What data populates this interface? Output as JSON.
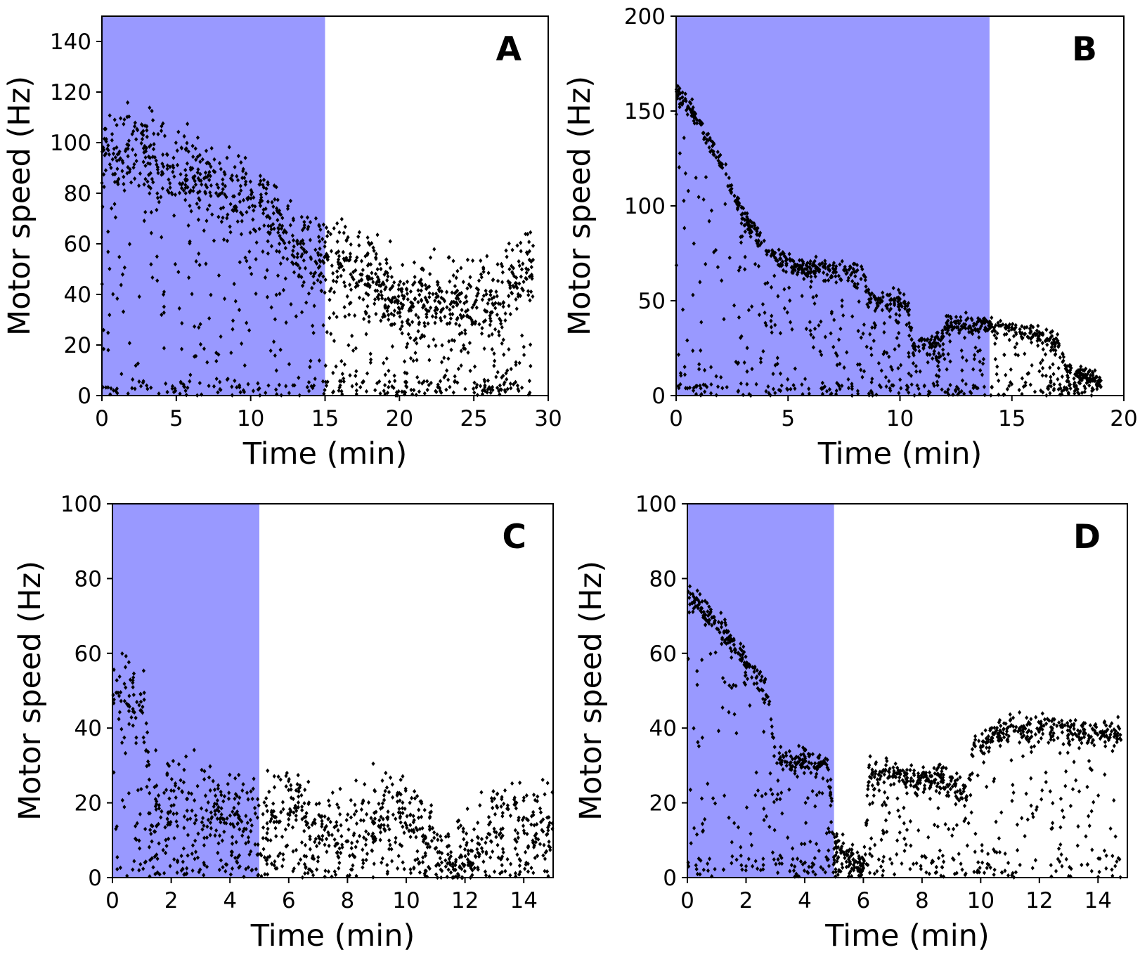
{
  "colors": {
    "shading": "#9999ff",
    "points": "#000000"
  },
  "chart_data": [
    {
      "type": "scatter",
      "panel": "A",
      "xlabel": "Time (min)",
      "ylabel": "Motor speed (Hz)",
      "xlim": [
        0,
        30
      ],
      "ylim": [
        0,
        150
      ],
      "xticks": [
        0,
        5,
        10,
        15,
        20,
        25,
        30
      ],
      "xtick_labels": [
        "0",
        "5",
        "10",
        "15",
        "20",
        "25",
        "30"
      ],
      "yticks": [
        0,
        20,
        40,
        60,
        80,
        100,
        120,
        140
      ],
      "ytick_labels": [
        "0",
        "20",
        "40",
        "60",
        "80",
        "100",
        "120",
        "140"
      ],
      "shaded_x": [
        0,
        15
      ],
      "x_end": 29,
      "seed": 11,
      "density": 1500,
      "scatter": 17,
      "trend": [
        [
          0,
          95
        ],
        [
          3,
          97
        ],
        [
          6,
          88
        ],
        [
          9,
          80
        ],
        [
          11,
          74
        ],
        [
          13,
          60
        ],
        [
          15,
          55
        ],
        [
          16,
          55
        ],
        [
          18,
          48
        ],
        [
          20,
          38
        ],
        [
          24,
          38
        ],
        [
          27,
          40
        ],
        [
          28.5,
          52
        ],
        [
          29,
          52
        ]
      ]
    },
    {
      "type": "scatter",
      "panel": "B",
      "xlabel": "Time (min)",
      "ylabel": "Motor speed (Hz)",
      "xlim": [
        0,
        20
      ],
      "ylim": [
        0,
        200
      ],
      "xticks": [
        0,
        5,
        10,
        15,
        20
      ],
      "xtick_labels": [
        "0",
        "5",
        "10",
        "15",
        "20"
      ],
      "yticks": [
        0,
        50,
        100,
        150,
        200
      ],
      "ytick_labels": [
        "0",
        "50",
        "100",
        "150",
        "200"
      ],
      "shaded_x": [
        0,
        14
      ],
      "x_end": 19,
      "seed": 23,
      "density": 1300,
      "scatter": 6,
      "trend": [
        [
          0,
          160
        ],
        [
          1,
          145
        ],
        [
          2,
          122
        ],
        [
          3,
          95
        ],
        [
          4,
          78
        ],
        [
          5,
          70
        ],
        [
          6,
          67
        ],
        [
          8.3,
          64
        ],
        [
          8.6,
          52
        ],
        [
          10.3,
          50
        ],
        [
          10.6,
          28
        ],
        [
          11.8,
          28
        ],
        [
          12.1,
          38
        ],
        [
          14,
          37
        ],
        [
          16,
          33
        ],
        [
          17,
          28
        ],
        [
          17.5,
          14
        ],
        [
          19,
          8
        ]
      ]
    },
    {
      "type": "scatter",
      "panel": "C",
      "xlabel": "Time (min)",
      "ylabel": "Motor speed (Hz)",
      "xlim": [
        0,
        15
      ],
      "ylim": [
        0,
        100
      ],
      "xticks": [
        0,
        2,
        4,
        6,
        8,
        10,
        12,
        14
      ],
      "xtick_labels": [
        "0",
        "2",
        "4",
        "6",
        "8",
        "10",
        "12",
        "14"
      ],
      "yticks": [
        0,
        20,
        40,
        60,
        80,
        100
      ],
      "ytick_labels": [
        "0",
        "20",
        "40",
        "60",
        "80",
        "100"
      ],
      "shaded_x": [
        0,
        5
      ],
      "x_end": 15,
      "seed": 37,
      "density": 1100,
      "scatter": 12,
      "trend": [
        [
          0,
          55
        ],
        [
          0.3,
          50
        ],
        [
          1.1,
          46
        ],
        [
          1.3,
          20
        ],
        [
          3,
          20
        ],
        [
          5,
          15
        ],
        [
          6,
          22
        ],
        [
          7,
          14
        ],
        [
          8,
          12
        ],
        [
          9,
          16
        ],
        [
          10,
          18
        ],
        [
          11,
          10
        ],
        [
          11.7,
          2
        ],
        [
          12,
          8
        ],
        [
          13,
          15
        ],
        [
          15,
          15
        ]
      ]
    },
    {
      "type": "scatter",
      "panel": "D",
      "xlabel": "Time (min)",
      "ylabel": "Motor speed (Hz)",
      "xlim": [
        0,
        15
      ],
      "ylim": [
        0,
        100
      ],
      "xticks": [
        0,
        2,
        4,
        6,
        8,
        10,
        12,
        14
      ],
      "xtick_labels": [
        "0",
        "2",
        "4",
        "6",
        "8",
        "10",
        "12",
        "14"
      ],
      "yticks": [
        0,
        20,
        40,
        60,
        80,
        100
      ],
      "ytick_labels": [
        "0",
        "20",
        "40",
        "60",
        "80",
        "100"
      ],
      "shaded_x": [
        0,
        5
      ],
      "x_end": 14.8,
      "seed": 53,
      "density": 1300,
      "scatter": 4,
      "trend": [
        [
          0,
          75
        ],
        [
          1,
          68
        ],
        [
          2,
          58
        ],
        [
          2.8,
          48
        ],
        [
          3,
          32
        ],
        [
          4.8,
          30
        ],
        [
          5,
          10
        ],
        [
          6,
          3
        ],
        [
          6.2,
          28
        ],
        [
          9,
          26
        ],
        [
          9.5,
          22
        ],
        [
          9.8,
          36
        ],
        [
          10.6,
          38
        ],
        [
          11,
          40
        ],
        [
          14.8,
          38
        ]
      ]
    }
  ]
}
